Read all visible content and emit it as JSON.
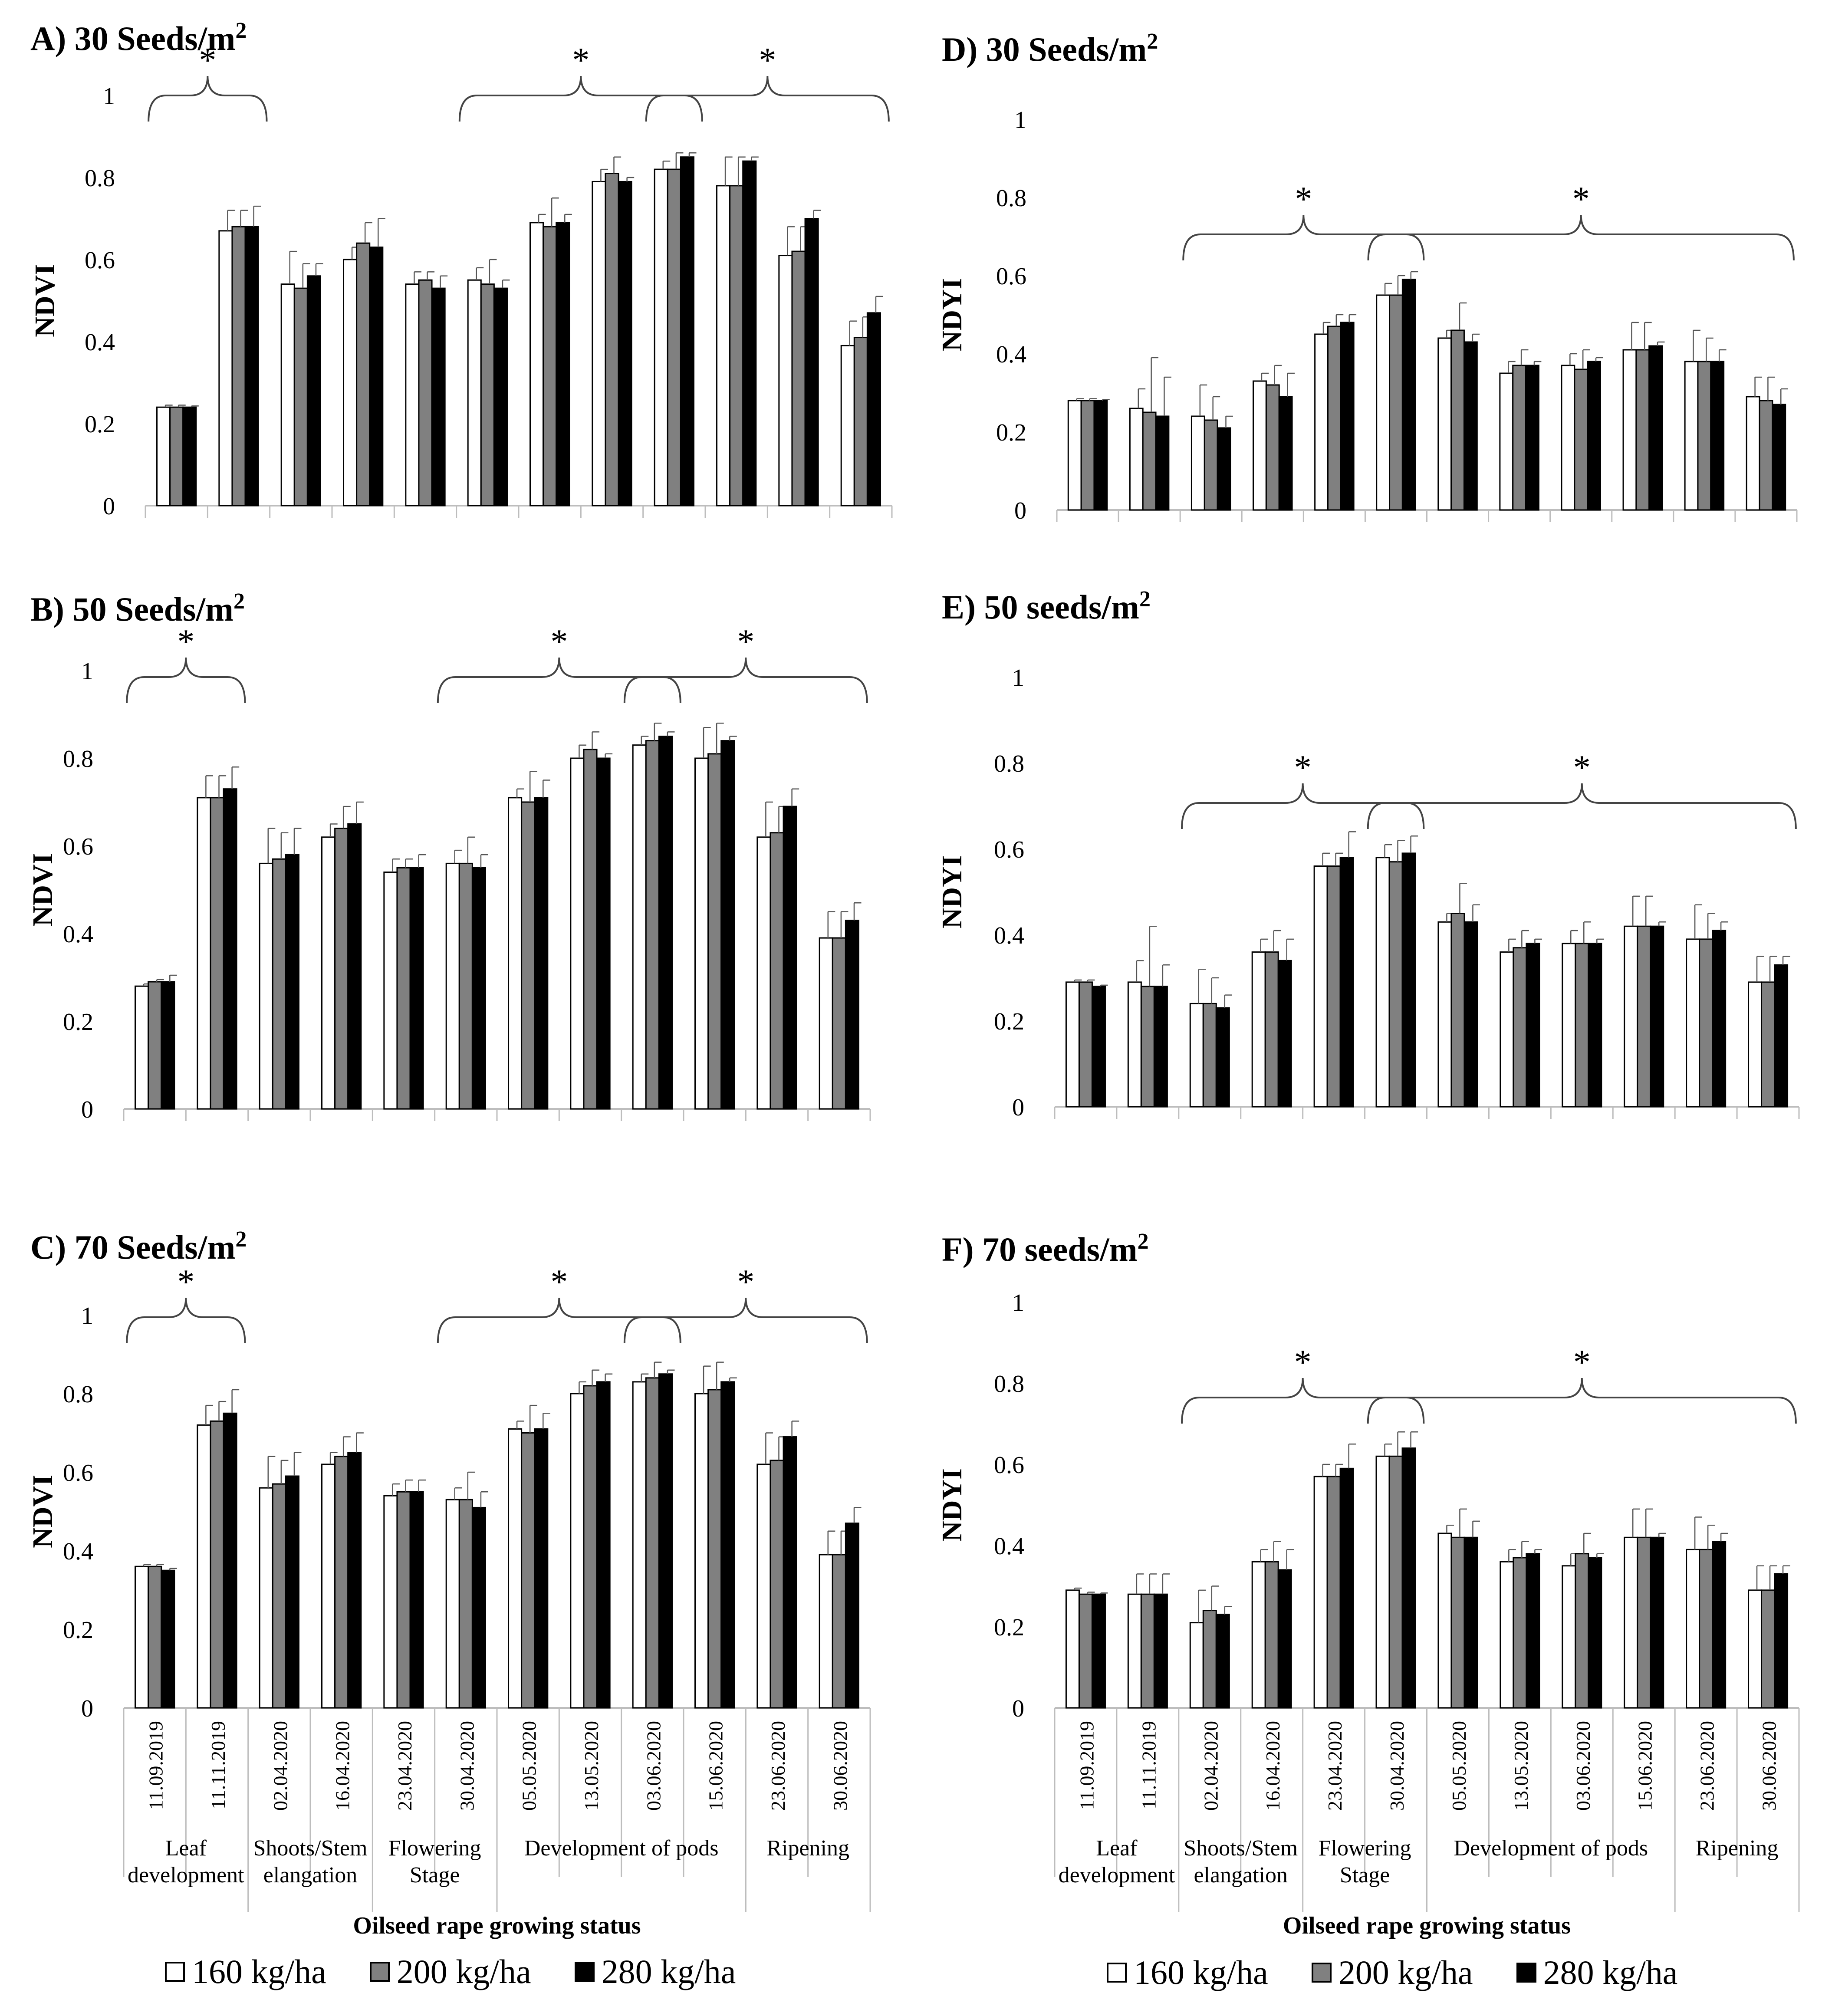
{
  "legend": {
    "items": [
      {
        "label": "160 kg/ha",
        "color": "#ffffff"
      },
      {
        "label": "200 kg/ha",
        "color": "#808080"
      },
      {
        "label": "280 kg/ha",
        "color": "#000000"
      }
    ]
  },
  "chart_data": [
    {
      "id": "A",
      "type": "bar",
      "title": "A) 30 Seeds/m²",
      "ylabel": "NDVI",
      "ylim": [
        0,
        1
      ],
      "yticks": [
        "0",
        "0.2",
        "0.4",
        "0.6",
        "0.8",
        "1"
      ],
      "dates": [
        "11.09.2019",
        "11.11.2019",
        "02.04.2020",
        "16.04.2020",
        "23.04.2020",
        "30.04.2020",
        "05.05.2020",
        "13.05.2020",
        "03.06.2020",
        "15.06.2020",
        "23.06.2020",
        "30.06.2020"
      ],
      "series": [
        {
          "name": "160 kg/ha",
          "values": [
            0.24,
            0.67,
            0.54,
            0.6,
            0.54,
            0.55,
            0.69,
            0.79,
            0.82,
            0.78,
            0.61,
            0.39
          ],
          "errors": [
            0.005,
            0.05,
            0.08,
            0.03,
            0.03,
            0.03,
            0.02,
            0.03,
            0.02,
            0.07,
            0.07,
            0.06
          ]
        },
        {
          "name": "200 kg/ha",
          "values": [
            0.24,
            0.68,
            0.53,
            0.64,
            0.55,
            0.54,
            0.68,
            0.81,
            0.82,
            0.78,
            0.62,
            0.41
          ],
          "errors": [
            0.005,
            0.04,
            0.06,
            0.05,
            0.02,
            0.06,
            0.07,
            0.04,
            0.04,
            0.07,
            0.06,
            0.05
          ]
        },
        {
          "name": "280 kg/ha",
          "values": [
            0.24,
            0.68,
            0.56,
            0.63,
            0.53,
            0.53,
            0.69,
            0.79,
            0.85,
            0.84,
            0.7,
            0.47
          ],
          "errors": [
            0.003,
            0.05,
            0.03,
            0.07,
            0.03,
            0.02,
            0.02,
            0.01,
            0.01,
            0.01,
            0.02,
            0.04
          ]
        }
      ],
      "brackets": [
        {
          "from": 0,
          "to": 1,
          "label": "*"
        },
        {
          "from": 5,
          "to": 8,
          "label": "*"
        },
        {
          "from": 8,
          "to": 11,
          "label": "*"
        }
      ]
    },
    {
      "id": "B",
      "type": "bar",
      "title": "B) 50 Seeds/m²",
      "ylabel": "NDVI",
      "ylim": [
        0,
        1
      ],
      "yticks": [
        "0",
        "0.2",
        "0.4",
        "0.6",
        "0.8",
        "1"
      ],
      "dates": [
        "11.09.2019",
        "11.11.2019",
        "02.04.2020",
        "16.04.2020",
        "23.04.2020",
        "30.04.2020",
        "05.05.2020",
        "13.05.2020",
        "03.06.2020",
        "15.06.2020",
        "23.06.2020",
        "30.06.2020"
      ],
      "series": [
        {
          "name": "160 kg/ha",
          "values": [
            0.28,
            0.71,
            0.56,
            0.62,
            0.54,
            0.56,
            0.71,
            0.8,
            0.83,
            0.8,
            0.62,
            0.39
          ],
          "errors": [
            0.005,
            0.05,
            0.08,
            0.03,
            0.03,
            0.03,
            0.02,
            0.03,
            0.02,
            0.07,
            0.08,
            0.06
          ]
        },
        {
          "name": "200 kg/ha",
          "values": [
            0.29,
            0.71,
            0.57,
            0.64,
            0.55,
            0.56,
            0.7,
            0.82,
            0.84,
            0.81,
            0.63,
            0.39
          ],
          "errors": [
            0.005,
            0.05,
            0.06,
            0.05,
            0.02,
            0.06,
            0.07,
            0.04,
            0.04,
            0.07,
            0.06,
            0.06
          ]
        },
        {
          "name": "280 kg/ha",
          "values": [
            0.29,
            0.73,
            0.58,
            0.65,
            0.55,
            0.55,
            0.71,
            0.8,
            0.85,
            0.84,
            0.69,
            0.43
          ],
          "errors": [
            0.015,
            0.05,
            0.06,
            0.05,
            0.03,
            0.03,
            0.04,
            0.01,
            0.01,
            0.01,
            0.04,
            0.04
          ]
        }
      ],
      "brackets": [
        {
          "from": 0,
          "to": 1,
          "label": "*"
        },
        {
          "from": 5,
          "to": 8,
          "label": "*"
        },
        {
          "from": 8,
          "to": 11,
          "label": "*"
        }
      ]
    },
    {
      "id": "C",
      "type": "bar",
      "title": "C) 70 Seeds/m²",
      "ylabel": "NDVI",
      "ylim": [
        0,
        1
      ],
      "yticks": [
        "0",
        "0.2",
        "0.4",
        "0.6",
        "0.8",
        "1"
      ],
      "dates": [
        "11.09.2019",
        "11.11.2019",
        "02.04.2020",
        "16.04.2020",
        "23.04.2020",
        "30.04.2020",
        "05.05.2020",
        "13.05.2020",
        "03.06.2020",
        "15.06.2020",
        "23.06.2020",
        "30.06.2020"
      ],
      "series": [
        {
          "name": "160 kg/ha",
          "values": [
            0.36,
            0.72,
            0.56,
            0.62,
            0.54,
            0.53,
            0.71,
            0.8,
            0.83,
            0.8,
            0.62,
            0.39
          ],
          "errors": [
            0.005,
            0.05,
            0.08,
            0.03,
            0.03,
            0.03,
            0.02,
            0.03,
            0.02,
            0.07,
            0.08,
            0.06
          ]
        },
        {
          "name": "200 kg/ha",
          "values": [
            0.36,
            0.73,
            0.57,
            0.64,
            0.55,
            0.53,
            0.7,
            0.82,
            0.84,
            0.81,
            0.63,
            0.39
          ],
          "errors": [
            0.005,
            0.05,
            0.06,
            0.05,
            0.03,
            0.07,
            0.07,
            0.04,
            0.04,
            0.07,
            0.06,
            0.06
          ]
        },
        {
          "name": "280 kg/ha",
          "values": [
            0.35,
            0.75,
            0.59,
            0.65,
            0.55,
            0.51,
            0.71,
            0.83,
            0.85,
            0.83,
            0.69,
            0.47
          ],
          "errors": [
            0.005,
            0.06,
            0.06,
            0.05,
            0.03,
            0.04,
            0.04,
            0.02,
            0.01,
            0.01,
            0.04,
            0.04
          ]
        }
      ],
      "brackets": [
        {
          "from": 0,
          "to": 1,
          "label": "*"
        },
        {
          "from": 5,
          "to": 8,
          "label": "*"
        },
        {
          "from": 8,
          "to": 11,
          "label": "*"
        }
      ],
      "groups": [
        {
          "from": 0,
          "to": 1,
          "label": [
            "Leaf",
            "development"
          ]
        },
        {
          "from": 2,
          "to": 3,
          "label": [
            "Shoots/Stem",
            "elangation"
          ]
        },
        {
          "from": 4,
          "to": 5,
          "label": [
            "Flowering",
            "Stage"
          ]
        },
        {
          "from": 6,
          "to": 9,
          "label": [
            "Development of pods"
          ]
        },
        {
          "from": 10,
          "to": 11,
          "label": [
            "Ripening"
          ]
        }
      ],
      "xlabel": "Oilseed rape growing status"
    },
    {
      "id": "D",
      "type": "bar",
      "title": "D) 30 Seeds/m²",
      "ylabel": "NDYI",
      "ylim": [
        0,
        1
      ],
      "yticks": [
        "0",
        "0.2",
        "0.4",
        "0.6",
        "0.8",
        "1"
      ],
      "dates": [
        "11.09.2019",
        "11.11.2019",
        "02.04.2020",
        "16.04.2020",
        "23.04.2020",
        "30.04.2020",
        "05.05.2020",
        "13.05.2020",
        "03.06.2020",
        "15.06.2020",
        "23.06.2020",
        "30.06.2020"
      ],
      "series": [
        {
          "name": "160 kg/ha",
          "values": [
            0.28,
            0.26,
            0.24,
            0.33,
            0.45,
            0.55,
            0.44,
            0.35,
            0.37,
            0.41,
            0.38,
            0.29
          ],
          "errors": [
            0.005,
            0.05,
            0.08,
            0.02,
            0.03,
            0.03,
            0.02,
            0.03,
            0.03,
            0.07,
            0.08,
            0.05
          ]
        },
        {
          "name": "200 kg/ha",
          "values": [
            0.28,
            0.25,
            0.23,
            0.32,
            0.47,
            0.55,
            0.46,
            0.37,
            0.36,
            0.41,
            0.38,
            0.28
          ],
          "errors": [
            0.005,
            0.14,
            0.06,
            0.05,
            0.03,
            0.05,
            0.07,
            0.04,
            0.05,
            0.07,
            0.06,
            0.06
          ]
        },
        {
          "name": "280 kg/ha",
          "values": [
            0.28,
            0.24,
            0.21,
            0.29,
            0.48,
            0.59,
            0.43,
            0.37,
            0.38,
            0.42,
            0.38,
            0.27
          ],
          "errors": [
            0.003,
            0.1,
            0.03,
            0.06,
            0.02,
            0.02,
            0.02,
            0.01,
            0.01,
            0.01,
            0.03,
            0.04
          ]
        }
      ],
      "brackets": [
        {
          "from": 2,
          "to": 5,
          "label": "*"
        },
        {
          "from": 5,
          "to": 11,
          "label": "*"
        }
      ]
    },
    {
      "id": "E",
      "type": "bar",
      "title": "E) 50 seeds/m²",
      "ylabel": "NDYI",
      "ylim": [
        0,
        1
      ],
      "yticks": [
        "0",
        "0.2",
        "0.4",
        "0.6",
        "0.8",
        "1"
      ],
      "dates": [
        "11.09.2019",
        "11.11.2019",
        "02.04.2020",
        "16.04.2020",
        "23.04.2020",
        "30.04.2020",
        "05.05.2020",
        "13.05.2020",
        "03.06.2020",
        "15.06.2020",
        "23.06.2020",
        "30.06.2020"
      ],
      "series": [
        {
          "name": "160 kg/ha",
          "values": [
            0.29,
            0.29,
            0.24,
            0.36,
            0.56,
            0.58,
            0.43,
            0.36,
            0.38,
            0.42,
            0.39,
            0.29
          ],
          "errors": [
            0.005,
            0.05,
            0.08,
            0.03,
            0.03,
            0.03,
            0.02,
            0.03,
            0.03,
            0.07,
            0.08,
            0.06
          ]
        },
        {
          "name": "200 kg/ha",
          "values": [
            0.29,
            0.28,
            0.24,
            0.36,
            0.56,
            0.57,
            0.45,
            0.37,
            0.38,
            0.42,
            0.39,
            0.29
          ],
          "errors": [
            0.005,
            0.14,
            0.06,
            0.05,
            0.03,
            0.05,
            0.07,
            0.04,
            0.05,
            0.07,
            0.06,
            0.06
          ]
        },
        {
          "name": "280 kg/ha",
          "values": [
            0.28,
            0.28,
            0.23,
            0.34,
            0.58,
            0.59,
            0.43,
            0.38,
            0.38,
            0.42,
            0.41,
            0.33
          ],
          "errors": [
            0.003,
            0.05,
            0.03,
            0.05,
            0.06,
            0.04,
            0.04,
            0.01,
            0.01,
            0.01,
            0.02,
            0.02
          ]
        }
      ],
      "brackets": [
        {
          "from": 2,
          "to": 5,
          "label": "*"
        },
        {
          "from": 5,
          "to": 11,
          "label": "*"
        }
      ]
    },
    {
      "id": "F",
      "type": "bar",
      "title": "F) 70 seeds/m²",
      "ylabel": "NDYI",
      "ylim": [
        0,
        1
      ],
      "yticks": [
        "0",
        "0.2",
        "0.4",
        "0.6",
        "0.8",
        "1"
      ],
      "dates": [
        "11.09.2019",
        "11.11.2019",
        "02.04.2020",
        "16.04.2020",
        "23.04.2020",
        "30.04.2020",
        "05.05.2020",
        "13.05.2020",
        "03.06.2020",
        "15.06.2020",
        "23.06.2020",
        "30.06.2020"
      ],
      "series": [
        {
          "name": "160 kg/ha",
          "values": [
            0.29,
            0.28,
            0.21,
            0.36,
            0.57,
            0.62,
            0.43,
            0.36,
            0.35,
            0.42,
            0.39,
            0.29
          ],
          "errors": [
            0.005,
            0.05,
            0.08,
            0.03,
            0.03,
            0.03,
            0.02,
            0.03,
            0.03,
            0.07,
            0.08,
            0.06
          ]
        },
        {
          "name": "200 kg/ha",
          "values": [
            0.28,
            0.28,
            0.24,
            0.36,
            0.57,
            0.62,
            0.42,
            0.37,
            0.38,
            0.42,
            0.39,
            0.29
          ],
          "errors": [
            0.005,
            0.05,
            0.06,
            0.05,
            0.03,
            0.06,
            0.07,
            0.04,
            0.05,
            0.07,
            0.06,
            0.06
          ]
        },
        {
          "name": "280 kg/ha",
          "values": [
            0.28,
            0.28,
            0.23,
            0.34,
            0.59,
            0.64,
            0.42,
            0.38,
            0.37,
            0.42,
            0.41,
            0.33
          ],
          "errors": [
            0.003,
            0.05,
            0.02,
            0.05,
            0.06,
            0.04,
            0.04,
            0.01,
            0.01,
            0.01,
            0.02,
            0.02
          ]
        }
      ],
      "brackets": [
        {
          "from": 2,
          "to": 5,
          "label": "*"
        },
        {
          "from": 5,
          "to": 11,
          "label": "*"
        }
      ],
      "groups": [
        {
          "from": 0,
          "to": 1,
          "label": [
            "Leaf",
            "development"
          ]
        },
        {
          "from": 2,
          "to": 3,
          "label": [
            "Shoots/Stem",
            "elangation"
          ]
        },
        {
          "from": 4,
          "to": 5,
          "label": [
            "Flowering",
            "Stage"
          ]
        },
        {
          "from": 6,
          "to": 9,
          "label": [
            "Development of pods"
          ]
        },
        {
          "from": 10,
          "to": 11,
          "label": [
            "Ripening"
          ]
        }
      ],
      "xlabel": "Oilseed rape growing status"
    }
  ]
}
